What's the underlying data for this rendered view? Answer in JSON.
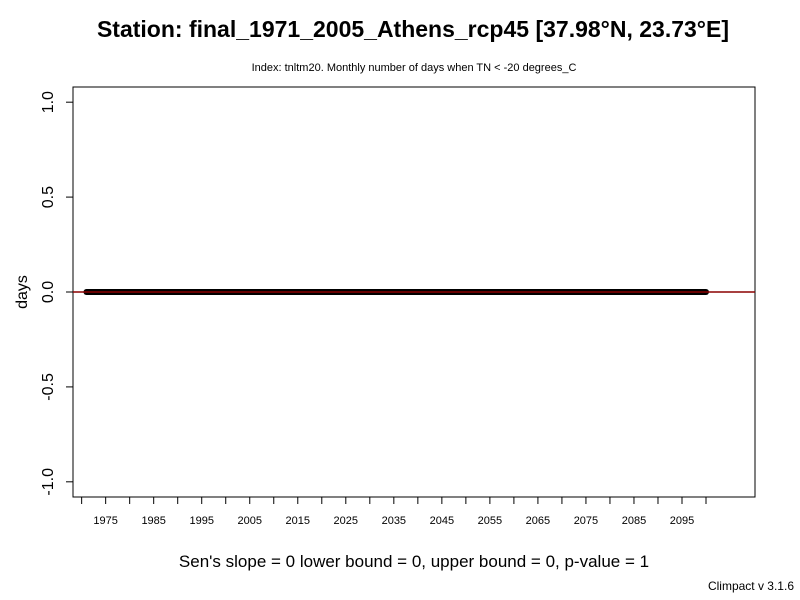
{
  "chart_data": {
    "type": "line",
    "title": "Station: final_1971_2005_Athens_rcp45 [37.98°N, 23.73°E]",
    "subtitle": "Index: tnltm20. Monthly number of days when TN < -20 degrees_C",
    "ylabel": "days",
    "xlabel": "",
    "xlim": [
      1968.2,
      2110.2
    ],
    "ylim": [
      -1.08,
      1.08
    ],
    "x_data_range": [
      1971,
      2100
    ],
    "y_ticks": [
      -1.0,
      -0.5,
      0.0,
      0.5,
      1.0
    ],
    "y_tick_labels": [
      "-1.0",
      "-0.5",
      "0.0",
      "0.5",
      "1.0"
    ],
    "x_minor_ticks": [
      1970,
      1980,
      1990,
      2000,
      2010,
      2020,
      2030,
      2040,
      2050,
      2060,
      2070,
      2080,
      2090,
      2100
    ],
    "x_ticks": [
      1975,
      1985,
      1995,
      2005,
      2015,
      2025,
      2035,
      2045,
      2055,
      2065,
      2075,
      2085,
      2095
    ],
    "x_tick_labels": [
      "1975",
      "1985",
      "1995",
      "2005",
      "2015",
      "2025",
      "2035",
      "2045",
      "2055",
      "2065",
      "2075",
      "2085",
      "2095"
    ],
    "series": [
      {
        "values_constant": 0,
        "color": "#000000"
      }
    ],
    "trend_line": {
      "slope": 0,
      "intercept": 0,
      "color": "#8b0000"
    },
    "grid": false,
    "stats_text": "Sen's slope = 0   lower bound = 0,   upper bound = 0,   p-value = 1",
    "footer": "Climpact v 3.1.6"
  }
}
